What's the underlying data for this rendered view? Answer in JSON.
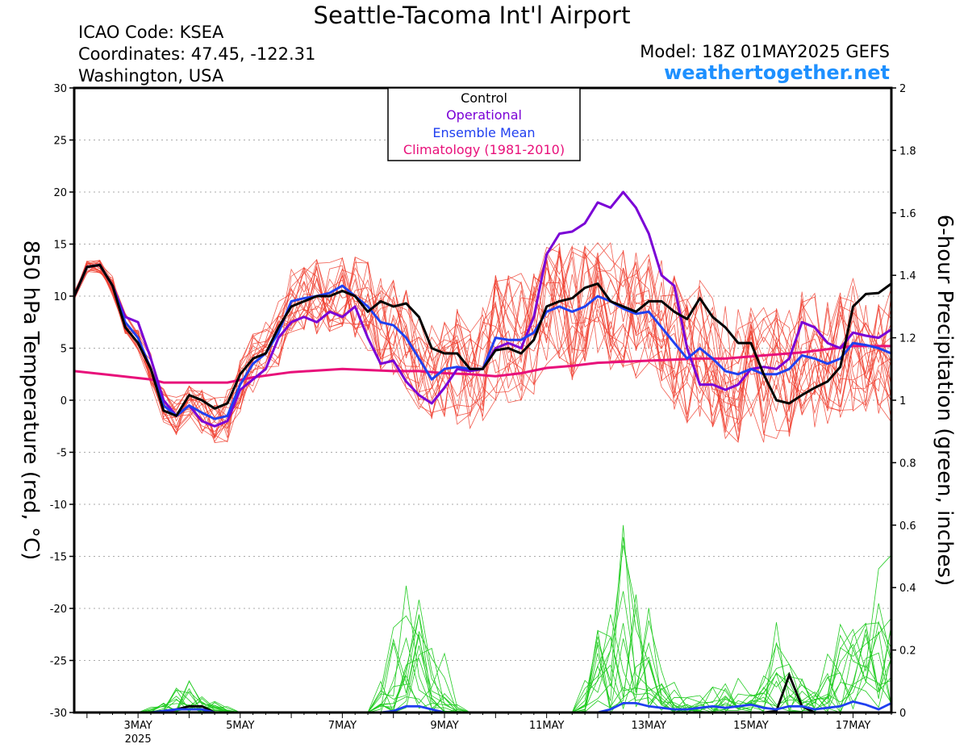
{
  "header": {
    "title": "Seattle-Tacoma Int'l Airport",
    "icao": "ICAO Code: KSEA",
    "coordinates": "Coordinates: 47.45, -122.31",
    "region": "Washington, USA",
    "model": "Model: 18Z 01MAY2025 GEFS",
    "site": "weathertogether.net"
  },
  "colors": {
    "control": "#000000",
    "operational": "#7a00d6",
    "ensemble_mean": "#2040f0",
    "climatology": "#e8107a",
    "members_temp": "#f04030",
    "members_precip": "#22cc22",
    "website": "#1e90ff"
  },
  "chart_data": {
    "type": "line",
    "title": "Seattle-Tacoma Int'l Airport",
    "ylabel_left": "850 hPa Temperature (red, °C)",
    "ylabel_right": "6-hour Precipitation (green, inches)",
    "ylim_left": [
      -30,
      30
    ],
    "ylim_right": [
      0,
      2
    ],
    "yticks_left": [
      30,
      25,
      20,
      15,
      10,
      5,
      0,
      -5,
      -10,
      -15,
      -20,
      -25,
      -30
    ],
    "yticks_right": [
      "2",
      "1.8",
      "1.6",
      "1.4",
      "1.2",
      "1",
      "0.8",
      "0.6",
      "0.4",
      "0.2",
      "0"
    ],
    "xlim_days": [
      1.75,
      17.75
    ],
    "x_unit": "day of May 2025",
    "x_ticks": [
      {
        "day": 3,
        "label": "3MAY",
        "sublabel": "2025"
      },
      {
        "day": 5,
        "label": "5MAY",
        "sublabel": ""
      },
      {
        "day": 7,
        "label": "7MAY",
        "sublabel": ""
      },
      {
        "day": 9,
        "label": "9MAY",
        "sublabel": ""
      },
      {
        "day": 11,
        "label": "11MAY",
        "sublabel": ""
      },
      {
        "day": 13,
        "label": "13MAY",
        "sublabel": ""
      },
      {
        "day": 15,
        "label": "15MAY",
        "sublabel": ""
      },
      {
        "day": 17,
        "label": "17MAY",
        "sublabel": ""
      }
    ],
    "legend": [
      "Control",
      "Operational",
      "Ensemble Mean",
      "Climatology (1981-2010)"
    ],
    "legend_position": "top-center",
    "grid": true,
    "series": [
      {
        "name": "Control",
        "axis": "left",
        "points": [
          [
            1.75,
            10
          ],
          [
            2,
            12.8
          ],
          [
            2.25,
            13
          ],
          [
            2.5,
            11
          ],
          [
            2.75,
            7
          ],
          [
            3,
            5.5
          ],
          [
            3.25,
            3
          ],
          [
            3.5,
            -1
          ],
          [
            3.75,
            -1.5
          ],
          [
            4,
            0.5
          ],
          [
            4.25,
            0
          ],
          [
            4.5,
            -0.8
          ],
          [
            4.75,
            -0.3
          ],
          [
            5,
            2.5
          ],
          [
            5.25,
            4
          ],
          [
            5.5,
            4.5
          ],
          [
            5.75,
            7
          ],
          [
            6,
            9
          ],
          [
            6.25,
            9.5
          ],
          [
            6.5,
            10
          ],
          [
            6.75,
            10
          ],
          [
            7,
            10.5
          ],
          [
            7.25,
            10
          ],
          [
            7.5,
            8.5
          ],
          [
            7.75,
            9.5
          ],
          [
            8,
            9
          ],
          [
            8.25,
            9.3
          ],
          [
            8.5,
            8
          ],
          [
            8.75,
            5
          ],
          [
            9,
            4.5
          ],
          [
            9.25,
            4.5
          ],
          [
            9.5,
            3
          ],
          [
            9.75,
            3
          ],
          [
            10,
            4.8
          ],
          [
            10.25,
            5
          ],
          [
            10.5,
            4.5
          ],
          [
            10.75,
            5.8
          ],
          [
            11,
            9
          ],
          [
            11.25,
            9.5
          ],
          [
            11.5,
            9.8
          ],
          [
            11.75,
            10.8
          ],
          [
            12,
            11.2
          ],
          [
            12.25,
            9.5
          ],
          [
            12.5,
            9
          ],
          [
            12.75,
            8.5
          ],
          [
            13,
            9.5
          ],
          [
            13.25,
            9.5
          ],
          [
            13.5,
            8.5
          ],
          [
            13.75,
            7.8
          ],
          [
            14,
            9.8
          ],
          [
            14.25,
            8
          ],
          [
            14.5,
            7
          ],
          [
            14.75,
            5.5
          ],
          [
            15,
            5.5
          ],
          [
            15.25,
            2.5
          ],
          [
            15.5,
            0
          ],
          [
            15.75,
            -0.3
          ],
          [
            16,
            0.5
          ],
          [
            16.25,
            1.2
          ],
          [
            16.5,
            1.8
          ],
          [
            16.75,
            3.2
          ],
          [
            17,
            9
          ],
          [
            17.25,
            10.2
          ],
          [
            17.5,
            10.3
          ],
          [
            17.75,
            11.2
          ]
        ]
      },
      {
        "name": "Operational",
        "axis": "left",
        "points": [
          [
            1.75,
            10
          ],
          [
            2,
            12.8
          ],
          [
            2.25,
            13
          ],
          [
            2.5,
            11
          ],
          [
            2.75,
            8
          ],
          [
            3,
            7.5
          ],
          [
            3.25,
            4
          ],
          [
            3.5,
            0
          ],
          [
            3.75,
            -1.5
          ],
          [
            4,
            -0.5
          ],
          [
            4.25,
            -2
          ],
          [
            4.5,
            -2.5
          ],
          [
            4.75,
            -2
          ],
          [
            5,
            1
          ],
          [
            5.25,
            2
          ],
          [
            5.5,
            3
          ],
          [
            5.75,
            6
          ],
          [
            6,
            7.5
          ],
          [
            6.25,
            8
          ],
          [
            6.5,
            7.5
          ],
          [
            6.75,
            8.5
          ],
          [
            7,
            8
          ],
          [
            7.25,
            9
          ],
          [
            7.5,
            6
          ],
          [
            7.75,
            3.5
          ],
          [
            8,
            3.8
          ],
          [
            8.25,
            1.8
          ],
          [
            8.5,
            0.5
          ],
          [
            8.75,
            -0.3
          ],
          [
            9,
            1.2
          ],
          [
            9.25,
            3
          ],
          [
            9.5,
            2.8
          ],
          [
            9.75,
            3
          ],
          [
            10,
            5
          ],
          [
            10.25,
            5.5
          ],
          [
            10.5,
            5
          ],
          [
            10.75,
            8
          ],
          [
            11,
            14
          ],
          [
            11.25,
            16
          ],
          [
            11.5,
            16.2
          ],
          [
            11.75,
            17
          ],
          [
            12,
            19
          ],
          [
            12.25,
            18.5
          ],
          [
            12.5,
            20
          ],
          [
            12.75,
            18.5
          ],
          [
            13,
            16
          ],
          [
            13.25,
            12
          ],
          [
            13.5,
            11
          ],
          [
            13.75,
            5
          ],
          [
            14,
            1.5
          ],
          [
            14.25,
            1.5
          ],
          [
            14.5,
            1
          ],
          [
            14.75,
            1.5
          ],
          [
            15,
            3
          ],
          [
            15.25,
            3.2
          ],
          [
            15.5,
            3
          ],
          [
            15.75,
            4
          ],
          [
            16,
            7.5
          ],
          [
            16.25,
            7
          ],
          [
            16.5,
            5.5
          ],
          [
            16.75,
            5
          ],
          [
            17,
            6.5
          ],
          [
            17.25,
            6.2
          ],
          [
            17.5,
            6
          ],
          [
            17.75,
            6.8
          ]
        ]
      },
      {
        "name": "Ensemble Mean",
        "axis": "left",
        "points": [
          [
            1.75,
            10
          ],
          [
            2,
            12.8
          ],
          [
            2.25,
            13
          ],
          [
            2.5,
            11
          ],
          [
            2.75,
            7.5
          ],
          [
            3,
            6
          ],
          [
            3.25,
            3
          ],
          [
            3.5,
            -0.5
          ],
          [
            3.75,
            -1.5
          ],
          [
            4,
            -0.5
          ],
          [
            4.25,
            -1.2
          ],
          [
            4.5,
            -1.8
          ],
          [
            4.75,
            -1.5
          ],
          [
            5,
            1.5
          ],
          [
            5.25,
            3.5
          ],
          [
            5.5,
            4.5
          ],
          [
            5.75,
            6.5
          ],
          [
            6,
            9.5
          ],
          [
            6.25,
            9.8
          ],
          [
            6.5,
            10
          ],
          [
            6.75,
            10.3
          ],
          [
            7,
            11
          ],
          [
            7.25,
            10
          ],
          [
            7.5,
            9
          ],
          [
            7.75,
            7.5
          ],
          [
            8,
            7.2
          ],
          [
            8.25,
            6
          ],
          [
            8.5,
            4
          ],
          [
            8.75,
            2
          ],
          [
            9,
            3
          ],
          [
            9.25,
            3.2
          ],
          [
            9.5,
            3
          ],
          [
            9.75,
            3
          ],
          [
            10,
            6
          ],
          [
            10.25,
            5.8
          ],
          [
            10.5,
            5.8
          ],
          [
            10.75,
            6.5
          ],
          [
            11,
            8.5
          ],
          [
            11.25,
            9
          ],
          [
            11.5,
            8.5
          ],
          [
            11.75,
            9
          ],
          [
            12,
            10
          ],
          [
            12.25,
            9.5
          ],
          [
            12.5,
            8.8
          ],
          [
            12.75,
            8.3
          ],
          [
            13,
            8.5
          ],
          [
            13.25,
            7
          ],
          [
            13.5,
            5.5
          ],
          [
            13.75,
            4
          ],
          [
            14,
            5
          ],
          [
            14.25,
            4
          ],
          [
            14.5,
            2.8
          ],
          [
            14.75,
            2.5
          ],
          [
            15,
            3
          ],
          [
            15.25,
            2.5
          ],
          [
            15.5,
            2.5
          ],
          [
            15.75,
            3
          ],
          [
            16,
            4.3
          ],
          [
            16.25,
            4
          ],
          [
            16.5,
            3.5
          ],
          [
            16.75,
            4
          ],
          [
            17,
            5.5
          ],
          [
            17.25,
            5.3
          ],
          [
            17.5,
            5
          ],
          [
            17.75,
            4.5
          ]
        ]
      },
      {
        "name": "Climatology (1981-2010)",
        "axis": "left",
        "points": [
          [
            1.75,
            2.8
          ],
          [
            2.5,
            2.4
          ],
          [
            3.25,
            2
          ],
          [
            3.5,
            1.7
          ],
          [
            4,
            1.7
          ],
          [
            4.75,
            1.7
          ],
          [
            5.25,
            2.2
          ],
          [
            6,
            2.7
          ],
          [
            7,
            3
          ],
          [
            8,
            2.8
          ],
          [
            8.5,
            2.8
          ],
          [
            9,
            2.6
          ],
          [
            9.5,
            2.5
          ],
          [
            10,
            2.3
          ],
          [
            10.5,
            2.6
          ],
          [
            11,
            3.1
          ],
          [
            11.5,
            3.3
          ],
          [
            12,
            3.6
          ],
          [
            12.5,
            3.7
          ],
          [
            13,
            3.8
          ],
          [
            14,
            4
          ],
          [
            14.5,
            4
          ],
          [
            15,
            4.2
          ],
          [
            16,
            4.6
          ],
          [
            16.5,
            4.9
          ],
          [
            17,
            5.2
          ],
          [
            17.75,
            5.2
          ]
        ]
      }
    ],
    "precip_series": [
      {
        "name": "Control",
        "axis": "right",
        "points": [
          [
            1.75,
            0
          ],
          [
            3.25,
            0
          ],
          [
            3.75,
            0.01
          ],
          [
            4,
            0.02
          ],
          [
            4.25,
            0.02
          ],
          [
            4.5,
            0
          ],
          [
            15.25,
            0
          ],
          [
            15.5,
            0.005
          ],
          [
            15.75,
            0.12
          ],
          [
            16,
            0.02
          ],
          [
            16.25,
            0
          ],
          [
            17.75,
            0
          ]
        ]
      },
      {
        "name": "Operational",
        "axis": "right",
        "points": [
          [
            1.75,
            0
          ],
          [
            3.5,
            0
          ],
          [
            3.75,
            0.01
          ],
          [
            4,
            0.01
          ],
          [
            4.25,
            0.01
          ],
          [
            4.5,
            0
          ],
          [
            17.75,
            0
          ]
        ]
      },
      {
        "name": "Ensemble Mean",
        "axis": "right",
        "points": [
          [
            1.75,
            0
          ],
          [
            3.25,
            0
          ],
          [
            3.75,
            0.01
          ],
          [
            4,
            0.01
          ],
          [
            4.25,
            0.01
          ],
          [
            4.5,
            0
          ],
          [
            7.75,
            0
          ],
          [
            8,
            0.005
          ],
          [
            8.25,
            0.02
          ],
          [
            8.5,
            0.02
          ],
          [
            8.75,
            0.01
          ],
          [
            9,
            0
          ],
          [
            12,
            0
          ],
          [
            12.25,
            0.01
          ],
          [
            12.5,
            0.03
          ],
          [
            12.75,
            0.03
          ],
          [
            13,
            0.02
          ],
          [
            13.25,
            0.015
          ],
          [
            13.5,
            0.01
          ],
          [
            13.75,
            0.01
          ],
          [
            14,
            0.015
          ],
          [
            14.25,
            0.02
          ],
          [
            14.5,
            0.015
          ],
          [
            14.75,
            0.02
          ],
          [
            15,
            0.025
          ],
          [
            15.25,
            0.015
          ],
          [
            15.5,
            0.01
          ],
          [
            15.75,
            0.02
          ],
          [
            16,
            0.02
          ],
          [
            16.25,
            0.01
          ],
          [
            16.5,
            0.015
          ],
          [
            16.75,
            0.02
          ],
          [
            17,
            0.035
          ],
          [
            17.25,
            0.025
          ],
          [
            17.5,
            0.01
          ],
          [
            17.75,
            0.03
          ]
        ]
      }
    ]
  }
}
